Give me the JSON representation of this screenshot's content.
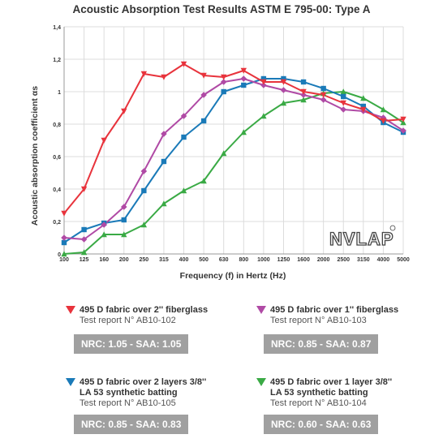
{
  "title": "Acoustic Absorption Test Results ASTM E 795-00: Type A",
  "logo_text": "NVLAP",
  "chart_data": {
    "type": "line",
    "xlabel": "Frequency (f) in Hertz (Hz)",
    "ylabel": "Acoustic absorption coefficient αs",
    "categories": [
      "100",
      "125",
      "160",
      "200",
      "250",
      "315",
      "400",
      "500",
      "630",
      "800",
      "1000",
      "1250",
      "1600",
      "2000",
      "2500",
      "3150",
      "4000",
      "5000"
    ],
    "y_ticks": [
      "0",
      "0,2",
      "0,4",
      "0,6",
      "0,8",
      "1",
      "1,2",
      "1,4"
    ],
    "ylim": [
      0,
      1.4
    ],
    "grid": true,
    "series": [
      {
        "name": "495 D fabric over 2'' fiberglass",
        "color": "#e8333c",
        "marker": "triangle-down",
        "values": [
          0.25,
          0.4,
          0.7,
          0.88,
          1.11,
          1.09,
          1.17,
          1.1,
          1.09,
          1.13,
          1.06,
          1.06,
          1.0,
          0.98,
          0.93,
          0.89,
          0.82,
          0.83
        ]
      },
      {
        "name": "495 D fabric over 1'' fiberglass",
        "color": "#b04aa5",
        "marker": "diamond",
        "values": [
          0.1,
          0.09,
          0.18,
          0.29,
          0.51,
          0.74,
          0.85,
          0.98,
          1.06,
          1.08,
          1.04,
          1.01,
          0.98,
          0.95,
          0.89,
          0.88,
          0.84,
          0.76
        ]
      },
      {
        "name": "495 D fabric over 2 layers 3/8'' LA 53 synthetic batting",
        "color": "#1a7ab8",
        "marker": "square",
        "values": [
          0.07,
          0.15,
          0.19,
          0.21,
          0.39,
          0.57,
          0.72,
          0.82,
          1.0,
          1.04,
          1.08,
          1.08,
          1.06,
          1.02,
          0.97,
          0.91,
          0.81,
          0.75
        ]
      },
      {
        "name": "495 D fabric over 1 layer 3/8'' LA 53 synthetic batting",
        "color": "#3aaa45",
        "marker": "triangle-up",
        "values": [
          0.0,
          0.01,
          0.12,
          0.12,
          0.18,
          0.31,
          0.39,
          0.45,
          0.62,
          0.75,
          0.85,
          0.93,
          0.95,
          0.99,
          1.0,
          0.96,
          0.89,
          0.81
        ]
      }
    ]
  },
  "legend": [
    {
      "name": "495 D fabric over 2'' fiberglass",
      "report": "Test report N° AB10-102",
      "badge": "NRC: 1.05 - SAA: 1.05"
    },
    {
      "name": "495 D fabric over 1'' fiberglass",
      "report": "Test report N° AB10-103",
      "badge": "NRC: 0.85 - SAA: 0.87"
    },
    {
      "name": "495 D fabric over 2 layers 3/8''",
      "name2": "LA 53 synthetic batting",
      "report": "Test report N° AB10-105",
      "badge": "NRC: 0.85 - SAA: 0.83"
    },
    {
      "name": "495 D fabric over 1 layer 3/8''",
      "name2": "LA 53 synthetic batting",
      "report": "Test report N° AB10-104",
      "badge": "NRC: 0.60 - SAA: 0.63"
    }
  ]
}
